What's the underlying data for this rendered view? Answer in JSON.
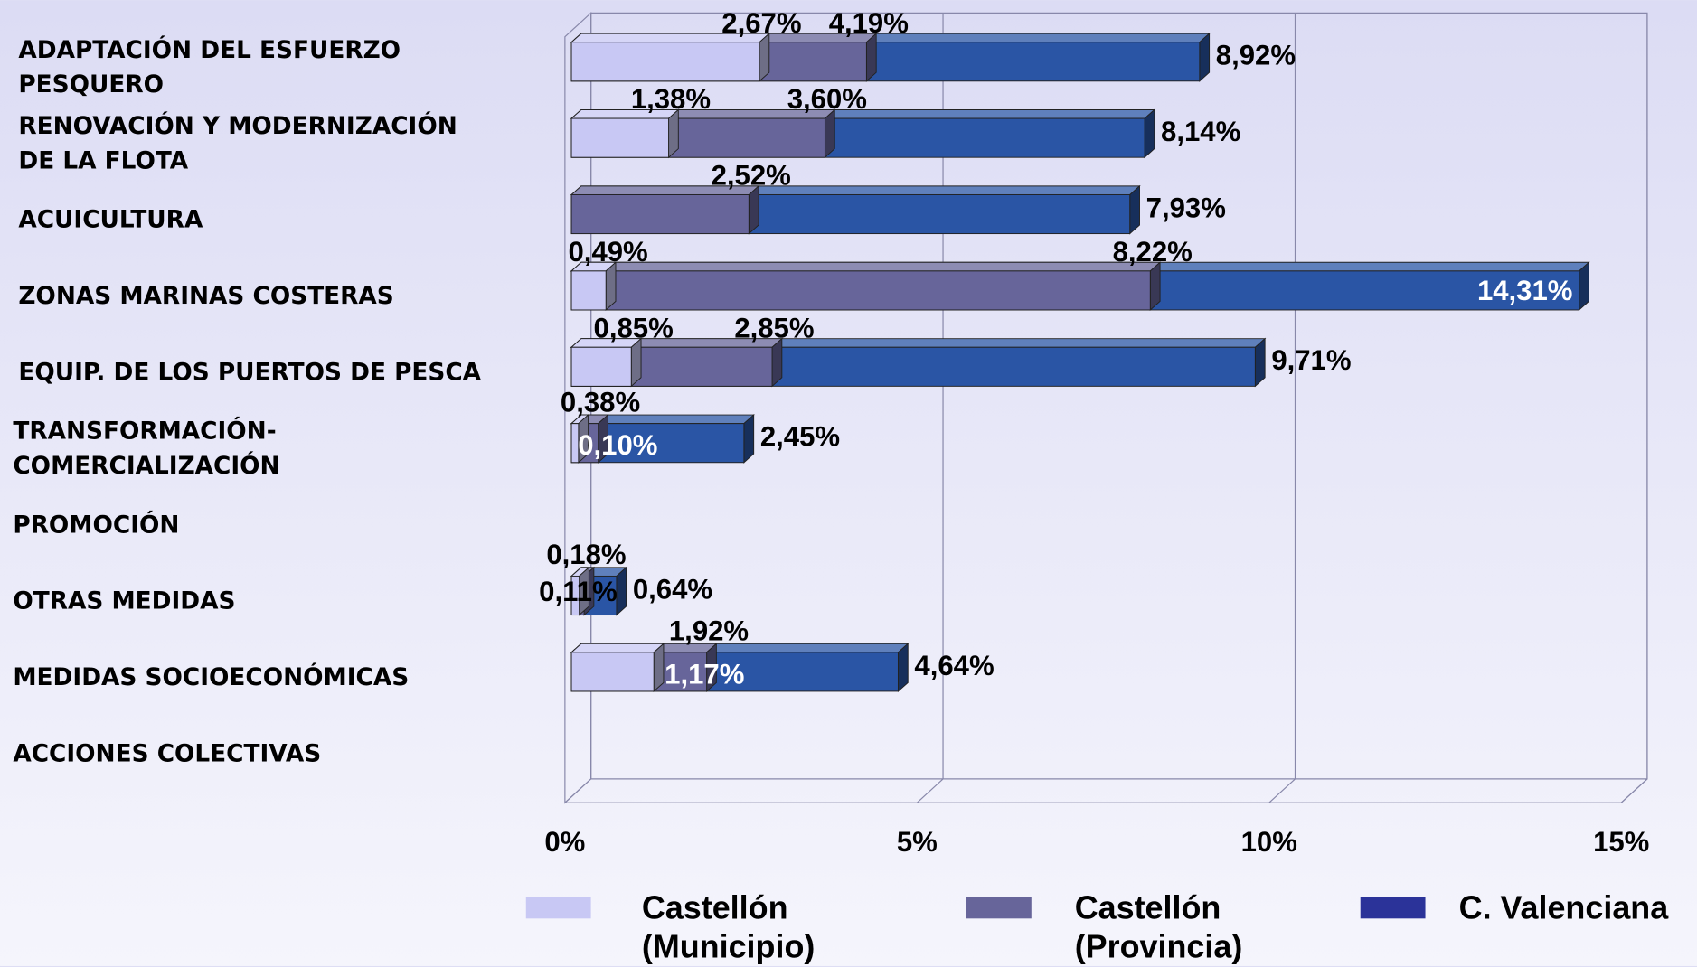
{
  "chart_data": {
    "type": "bar",
    "orientation": "horizontal",
    "three_d": true,
    "categories": [
      [
        "ADAPTACIÓN DEL ESFUERZO",
        "PESQUERO"
      ],
      [
        "RENOVACIÓN Y MODERNIZACIÓN",
        "DE LA FLOTA"
      ],
      [
        "ACUICULTURA"
      ],
      [
        "ZONAS MARINAS COSTERAS"
      ],
      [
        "EQUIP. DE LOS PUERTOS DE PESCA"
      ],
      [
        "TRANSFORMACIÓN-",
        "COMERCIALIZACIÓN"
      ],
      [
        "PROMOCIÓN"
      ],
      [
        "OTRAS MEDIDAS"
      ],
      [
        "MEDIDAS SOCIOECONÓMICAS"
      ],
      [
        "ACCIONES COLECTIVAS"
      ]
    ],
    "series": [
      {
        "name": "Castellón (Municipio)",
        "color": "#c8c8f4",
        "values": [
          2.67,
          1.38,
          null,
          0.49,
          0.85,
          0.1,
          null,
          0.11,
          1.17,
          null
        ],
        "value_labels": [
          "2,67%",
          "1,38%",
          null,
          "0,49%",
          "0,85%",
          "0,10%",
          null,
          "0,11%",
          "1,17%",
          null
        ]
      },
      {
        "name": "Castellón (Provincia)",
        "color": "#67659a",
        "values": [
          4.19,
          3.6,
          2.52,
          8.22,
          2.85,
          0.38,
          null,
          0.18,
          1.92,
          null
        ],
        "value_labels": [
          "4,19%",
          "3,60%",
          "2,52%",
          "8,22%",
          "2,85%",
          "0,38%",
          null,
          "0,18%",
          "1,92%",
          null
        ]
      },
      {
        "name": "C. Valenciana",
        "color": "#2a55a5",
        "values": [
          8.92,
          8.14,
          7.93,
          14.31,
          9.71,
          2.45,
          null,
          0.64,
          4.64,
          null
        ],
        "value_labels": [
          "8,92%",
          "8,14%",
          "7,93%",
          "14,31%",
          "9,71%",
          "2,45%",
          null,
          "0,64%",
          "4,64%",
          null
        ]
      }
    ],
    "xlim": [
      0,
      15
    ],
    "xticks": [
      {
        "value": 0,
        "label": "0%"
      },
      {
        "value": 5,
        "label": "5%"
      },
      {
        "value": 10,
        "label": "10%"
      },
      {
        "value": 15,
        "label": "15%"
      }
    ],
    "grid": true,
    "legend": "bottom"
  }
}
